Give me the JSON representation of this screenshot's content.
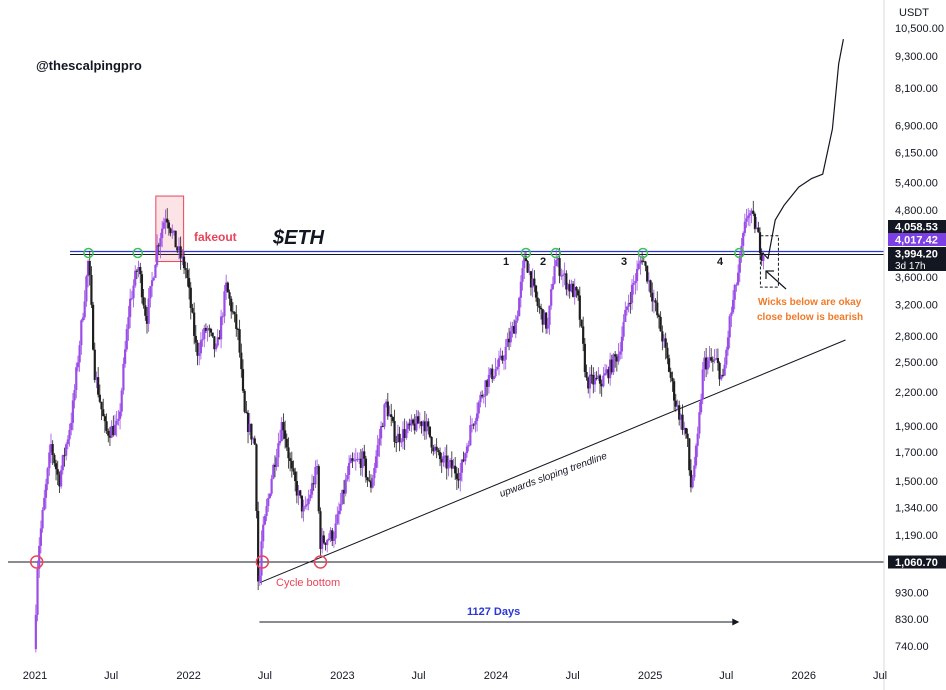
{
  "chart_data": {
    "type": "candlestick",
    "title": "$ETH",
    "watermark": "@thescalpingpro",
    "currency": "USDT",
    "y_scale": "log",
    "ylim": [
      680,
      11200
    ],
    "y_ticks": [
      {
        "value": 10500,
        "label": "10,500.00"
      },
      {
        "value": 9300,
        "label": "9,300.00"
      },
      {
        "value": 8100,
        "label": "8,100.00"
      },
      {
        "value": 6900,
        "label": "6,900.00"
      },
      {
        "value": 6150,
        "label": "6,150.00"
      },
      {
        "value": 5400,
        "label": "5,400.00"
      },
      {
        "value": 4800,
        "label": "4,800.00"
      },
      {
        "value": 3600,
        "label": "3,600.00"
      },
      {
        "value": 3200,
        "label": "3,200.00"
      },
      {
        "value": 2800,
        "label": "2,800.00"
      },
      {
        "value": 2500,
        "label": "2,500.00"
      },
      {
        "value": 2200,
        "label": "2,200.00"
      },
      {
        "value": 1900,
        "label": "1,900.00"
      },
      {
        "value": 1700,
        "label": "1,700.00"
      },
      {
        "value": 1500,
        "label": "1,500.00"
      },
      {
        "value": 1340,
        "label": "1,340.00"
      },
      {
        "value": 1190,
        "label": "1,190.00"
      },
      {
        "value": 930,
        "label": "930.00"
      },
      {
        "value": 830,
        "label": "830.00"
      },
      {
        "value": 740,
        "label": "740.00"
      }
    ],
    "x_range": [
      "2021-01-01",
      "2026-07-01"
    ],
    "x_ticks": [
      {
        "date": "2021-01-01",
        "label": "2021"
      },
      {
        "date": "2021-07-01",
        "label": "Jul"
      },
      {
        "date": "2022-01-01",
        "label": "2022"
      },
      {
        "date": "2022-07-01",
        "label": "Jul"
      },
      {
        "date": "2023-01-01",
        "label": "2023"
      },
      {
        "date": "2023-07-01",
        "label": "Jul"
      },
      {
        "date": "2024-01-01",
        "label": "2024"
      },
      {
        "date": "2024-07-01",
        "label": "Jul"
      },
      {
        "date": "2025-01-01",
        "label": "2025"
      },
      {
        "date": "2025-07-01",
        "label": "Jul"
      },
      {
        "date": "2026-01-01",
        "label": "2026"
      },
      {
        "date": "2026-07-01",
        "label": "Jul"
      }
    ],
    "price_path": [
      [
        "2021-01-01",
        730
      ],
      [
        "2021-01-10",
        1100
      ],
      [
        "2021-02-10",
        1750
      ],
      [
        "2021-03-01",
        1500
      ],
      [
        "2021-04-01",
        2000
      ],
      [
        "2021-05-10",
        3900
      ],
      [
        "2021-05-25",
        2400
      ],
      [
        "2021-06-20",
        1850
      ],
      [
        "2021-07-20",
        1900
      ],
      [
        "2021-08-15",
        3200
      ],
      [
        "2021-09-05",
        3800
      ],
      [
        "2021-09-25",
        3000
      ],
      [
        "2021-10-20",
        4100
      ],
      [
        "2021-11-10",
        4750
      ],
      [
        "2021-12-05",
        4100
      ],
      [
        "2021-12-28",
        3700
      ],
      [
        "2022-01-22",
        2600
      ],
      [
        "2022-02-15",
        2900
      ],
      [
        "2022-03-10",
        2600
      ],
      [
        "2022-04-02",
        3450
      ],
      [
        "2022-05-01",
        2800
      ],
      [
        "2022-05-15",
        2000
      ],
      [
        "2022-06-10",
        1750
      ],
      [
        "2022-06-18",
        900
      ],
      [
        "2022-06-25",
        1150
      ],
      [
        "2022-07-20",
        1550
      ],
      [
        "2022-08-14",
        1950
      ],
      [
        "2022-09-05",
        1550
      ],
      [
        "2022-10-05",
        1300
      ],
      [
        "2022-11-05",
        1600
      ],
      [
        "2022-11-10",
        1150
      ],
      [
        "2022-12-15",
        1200
      ],
      [
        "2023-01-20",
        1600
      ],
      [
        "2023-02-20",
        1650
      ],
      [
        "2023-03-10",
        1450
      ],
      [
        "2023-04-16",
        2100
      ],
      [
        "2023-05-10",
        1800
      ],
      [
        "2023-06-20",
        1900
      ],
      [
        "2023-07-15",
        1950
      ],
      [
        "2023-08-20",
        1650
      ],
      [
        "2023-09-15",
        1600
      ],
      [
        "2023-10-10",
        1550
      ],
      [
        "2023-11-05",
        1900
      ],
      [
        "2023-12-10",
        2300
      ],
      [
        "2024-01-15",
        2500
      ],
      [
        "2024-02-20",
        3000
      ],
      [
        "2024-03-12",
        3950
      ],
      [
        "2024-04-10",
        3200
      ],
      [
        "2024-05-05",
        2900
      ],
      [
        "2024-05-22",
        3900
      ],
      [
        "2024-06-20",
        3500
      ],
      [
        "2024-07-15",
        3300
      ],
      [
        "2024-08-05",
        2300
      ],
      [
        "2024-09-10",
        2300
      ],
      [
        "2024-10-20",
        2600
      ],
      [
        "2024-11-10",
        3200
      ],
      [
        "2024-12-15",
        3950
      ],
      [
        "2025-01-10",
        3300
      ],
      [
        "2025-02-05",
        2700
      ],
      [
        "2025-03-05",
        2100
      ],
      [
        "2025-04-01",
        1800
      ],
      [
        "2025-04-09",
        1450
      ],
      [
        "2025-04-25",
        1750
      ],
      [
        "2025-05-10",
        2500
      ],
      [
        "2025-06-10",
        2500
      ],
      [
        "2025-06-25",
        2300
      ],
      [
        "2025-07-10",
        2950
      ],
      [
        "2025-08-01",
        3700
      ],
      [
        "2025-08-22",
        4800
      ],
      [
        "2025-09-10",
        4500
      ],
      [
        "2025-09-25",
        4000
      ]
    ],
    "projection_path": [
      [
        "2025-09-25",
        4000
      ],
      [
        "2025-10-08",
        3900
      ],
      [
        "2025-10-25",
        4600
      ],
      [
        "2025-11-15",
        4900
      ],
      [
        "2025-12-20",
        5300
      ],
      [
        "2026-01-20",
        5500
      ],
      [
        "2026-02-15",
        5600
      ],
      [
        "2026-03-10",
        6800
      ],
      [
        "2026-03-25",
        9000
      ],
      [
        "2026-04-05",
        10000
      ]
    ],
    "resistance_level": 3994.2,
    "support_level": 1060.7,
    "trendline": {
      "from": [
        "2022-06-18",
        970
      ],
      "to": [
        "2026-04-10",
        2750
      ],
      "label": "upwards sloping trendline"
    },
    "price_labels": [
      {
        "value": 4058.53,
        "label": "4,058.53",
        "color": "#131722"
      },
      {
        "value": 4017.42,
        "label": "4,017.42",
        "color": "#7b3fe4"
      },
      {
        "value": 3994.2,
        "label": "3,994.20",
        "color": "#131722",
        "sub": "3d 17h"
      },
      {
        "value": 1060.7,
        "label": "1,060.70",
        "color": "#131722"
      }
    ],
    "annotations": {
      "fakeout": "fakeout",
      "cycle_bottom": "Cycle bottom",
      "days": "1127 Days",
      "wicks_line1": "Wicks below are okay",
      "wicks_line2": "close below is bearish",
      "tests": [
        "1",
        "2",
        "3",
        "4"
      ]
    },
    "colors": {
      "up": "#9b4de8",
      "down": "#1e1e1e",
      "fakeout": "#e8445a",
      "cycle_bottom": "#e8445a",
      "days": "#2a37d8",
      "wicks_note": "#f07a2a",
      "circle_green": "#3fbf55",
      "circle_red": "#e8445a"
    }
  }
}
